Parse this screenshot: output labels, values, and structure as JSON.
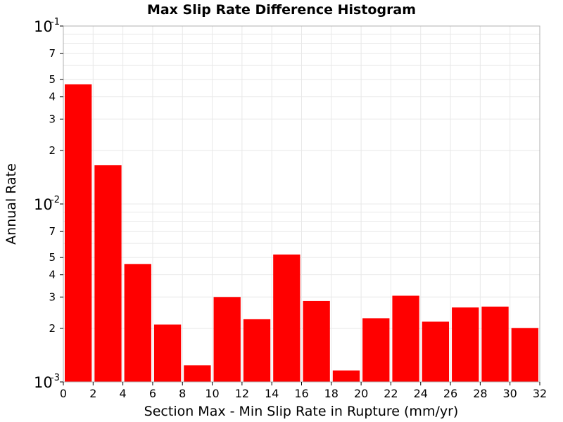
{
  "chart_data": {
    "type": "bar",
    "title": "Max Slip Rate Difference Histogram",
    "xlabel": "Section Max - Min Slip Rate in Rupture (mm/yr)",
    "ylabel": "Annual Rate",
    "yscale": "log",
    "xlim": [
      0,
      32
    ],
    "ylim": [
      0.001,
      0.1
    ],
    "bin_width": 2,
    "x_ticks": [
      "0",
      "2",
      "4",
      "6",
      "8",
      "10",
      "12",
      "14",
      "16",
      "18",
      "20",
      "22",
      "24",
      "26",
      "28",
      "30",
      "32"
    ],
    "y_minor_ticks": [
      {
        "value": 0.002,
        "label": "2"
      },
      {
        "value": 0.003,
        "label": "3"
      },
      {
        "value": 0.004,
        "label": "4"
      },
      {
        "value": 0.005,
        "label": "5"
      },
      {
        "value": 0.007,
        "label": "7"
      },
      {
        "value": 0.02,
        "label": "2"
      },
      {
        "value": 0.03,
        "label": "3"
      },
      {
        "value": 0.04,
        "label": "4"
      },
      {
        "value": 0.05,
        "label": "5"
      },
      {
        "value": 0.07,
        "label": "7"
      }
    ],
    "y_decades": [
      {
        "value": 0.001,
        "base": "10",
        "exp": "-3"
      },
      {
        "value": 0.01,
        "base": "10",
        "exp": "-2"
      },
      {
        "value": 0.1,
        "base": "10",
        "exp": "-1"
      }
    ],
    "bins": [
      {
        "x0": 0,
        "x1": 2,
        "value": 0.047
      },
      {
        "x0": 2,
        "x1": 4,
        "value": 0.0165
      },
      {
        "x0": 4,
        "x1": 6,
        "value": 0.0046
      },
      {
        "x0": 6,
        "x1": 8,
        "value": 0.0021
      },
      {
        "x0": 8,
        "x1": 10,
        "value": 0.00124
      },
      {
        "x0": 10,
        "x1": 12,
        "value": 0.003
      },
      {
        "x0": 12,
        "x1": 14,
        "value": 0.00225
      },
      {
        "x0": 14,
        "x1": 16,
        "value": 0.0052
      },
      {
        "x0": 16,
        "x1": 18,
        "value": 0.00285
      },
      {
        "x0": 18,
        "x1": 20,
        "value": 0.00116
      },
      {
        "x0": 20,
        "x1": 22,
        "value": 0.00228
      },
      {
        "x0": 22,
        "x1": 24,
        "value": 0.00305
      },
      {
        "x0": 24,
        "x1": 26,
        "value": 0.00218
      },
      {
        "x0": 26,
        "x1": 28,
        "value": 0.00262
      },
      {
        "x0": 28,
        "x1": 30,
        "value": 0.00265
      },
      {
        "x0": 30,
        "x1": 32,
        "value": 0.00201
      }
    ],
    "bar_color": "#ff0000",
    "grid": true,
    "grid_color": "#e8e8e8",
    "legend": "none"
  }
}
